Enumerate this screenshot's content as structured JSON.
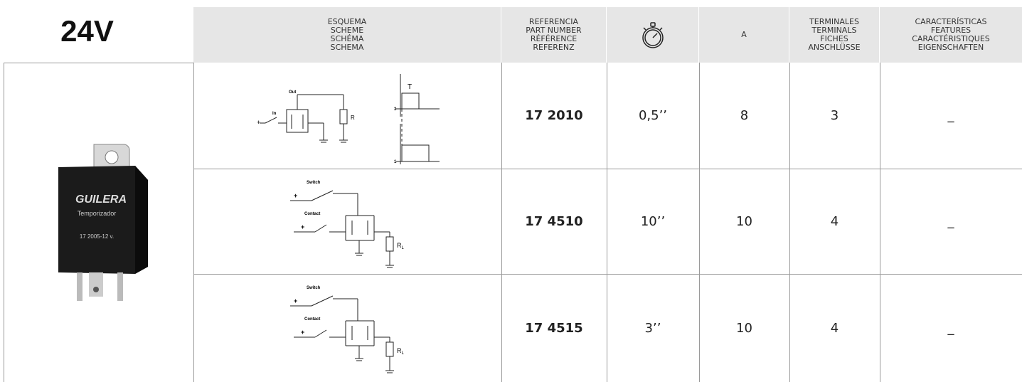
{
  "header": {
    "title": "24V",
    "schema": [
      "ESQUEMA",
      "SCHEME",
      "SCHÉMA",
      "SCHEMA"
    ],
    "part": [
      "REFERENCIA",
      "PART NUMBER",
      "RÉFÉRENCE",
      "REFERENZ"
    ],
    "amps": "A",
    "terminals": [
      "TERMINALES",
      "TERMINALS",
      "FICHES",
      "ANSCHLÜSSE"
    ],
    "features": [
      "CARACTERÍSTICAS",
      "FEATURES",
      "CARACTÉRISTIQUES",
      "EIGENSCHAFTEN"
    ]
  },
  "product": {
    "brand": "GUILERA",
    "name": "Temporizador",
    "code": "17 2005-12 v."
  },
  "table": {
    "rows": [
      {
        "part": "17 2010",
        "time": "0,5’’",
        "amps": "8",
        "terminals": "3",
        "features": "_",
        "schema": {
          "plus": "+",
          "input": "In",
          "output": "Out",
          "load": "R",
          "pulse": "T",
          "level_high": "3",
          "level_low": "1"
        }
      },
      {
        "part": "17 4510",
        "time": "10’’",
        "amps": "10",
        "terminals": "4",
        "features": "_",
        "schema": {
          "switch": "Switch",
          "contact": "Contact",
          "plus": "+",
          "load": "R",
          "load_sub": "L"
        }
      },
      {
        "part": "17 4515",
        "time": "3’’",
        "amps": "10",
        "terminals": "4",
        "features": "_",
        "schema": {
          "switch": "Switch",
          "contact": "Contact",
          "plus": "+",
          "load": "R",
          "load_sub": "L"
        }
      }
    ]
  }
}
